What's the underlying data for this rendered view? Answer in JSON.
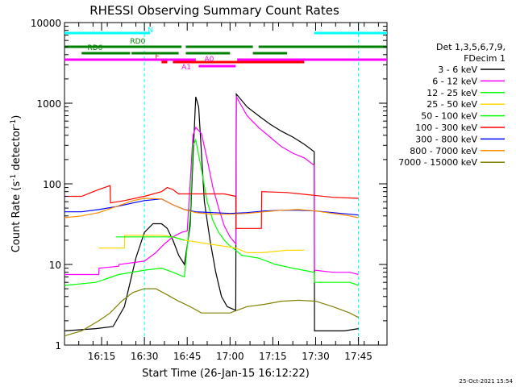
{
  "chart_data": {
    "type": "line",
    "title": "RHESSI Observing Summary Count Rates",
    "xlabel": "Start Time (26-Jan-15 16:12:22)",
    "ylabel_main": "Count Rate (s",
    "ylabel_exp1": "-1",
    "ylabel_mid": " detector",
    "ylabel_exp2": "-1",
    "ylabel_end": ")",
    "footer": "25-Oct-2021 15:54",
    "y_scale": "log",
    "ylim": [
      1,
      10000
    ],
    "y_ticks": [
      {
        "value": 1,
        "label": "1"
      },
      {
        "value": 10,
        "label": "10"
      },
      {
        "value": 100,
        "label": "100"
      },
      {
        "value": 1000,
        "label": "1000"
      },
      {
        "value": 10000,
        "label": "10000"
      }
    ],
    "x_range_min": [
      962,
      1075
    ],
    "x_ticks": [
      {
        "t": 975,
        "label": "16:15"
      },
      {
        "t": 990,
        "label": "16:30"
      },
      {
        "t": 1005,
        "label": "16:45"
      },
      {
        "t": 1020,
        "label": "17:00"
      },
      {
        "t": 1035,
        "label": "17:15"
      },
      {
        "t": 1050,
        "label": "17:30"
      },
      {
        "t": 1065,
        "label": "17:45"
      }
    ],
    "legend": {
      "header1": "Det 1,3,5,6,7,9,",
      "header2": "FDecim 1",
      "placement": "right"
    },
    "series": [
      {
        "name": "3 - 6 keV",
        "color": "#000000",
        "points": [
          [
            962,
            1.5
          ],
          [
            973,
            1.6
          ],
          [
            979,
            1.7
          ],
          [
            983,
            3
          ],
          [
            987,
            12
          ],
          [
            990,
            25
          ],
          [
            993,
            32
          ],
          [
            996,
            32
          ],
          [
            998,
            28
          ],
          [
            1000,
            20
          ],
          [
            1002,
            13
          ],
          [
            1004,
            10
          ],
          [
            1006,
            30
          ],
          [
            1007,
            200
          ],
          [
            1008,
            1200
          ],
          [
            1009,
            900
          ],
          [
            1011,
            60
          ],
          [
            1013,
            20
          ],
          [
            1015,
            8
          ],
          [
            1017,
            4
          ],
          [
            1019,
            3
          ],
          [
            1022,
            2.7
          ],
          [
            1022.2,
            1300
          ],
          [
            1026,
            900
          ],
          [
            1030,
            700
          ],
          [
            1034,
            550
          ],
          [
            1038,
            450
          ],
          [
            1042,
            380
          ],
          [
            1046,
            310
          ],
          [
            1049.5,
            250
          ],
          [
            1049.6,
            1.5
          ],
          [
            1055,
            1.5
          ],
          [
            1060,
            1.5
          ],
          [
            1065,
            1.6
          ]
        ]
      },
      {
        "name": "6 - 12 keV",
        "color": "#ff00ff",
        "points": [
          [
            962,
            7.5
          ],
          [
            974,
            7.5
          ],
          [
            974.1,
            9
          ],
          [
            981,
            9.5
          ],
          [
            981.1,
            10
          ],
          [
            990,
            11
          ],
          [
            994,
            14
          ],
          [
            997,
            18
          ],
          [
            1000,
            22
          ],
          [
            1003,
            25
          ],
          [
            1005,
            26
          ],
          [
            1006,
            100
          ],
          [
            1007,
            400
          ],
          [
            1008,
            500
          ],
          [
            1010,
            420
          ],
          [
            1012,
            200
          ],
          [
            1014,
            90
          ],
          [
            1016,
            50
          ],
          [
            1018,
            30
          ],
          [
            1020,
            22
          ],
          [
            1022,
            18
          ],
          [
            1022.2,
            1200
          ],
          [
            1026,
            700
          ],
          [
            1030,
            500
          ],
          [
            1034,
            380
          ],
          [
            1038,
            290
          ],
          [
            1042,
            240
          ],
          [
            1046,
            210
          ],
          [
            1049.5,
            170
          ],
          [
            1049.6,
            8.5
          ],
          [
            1056,
            8
          ],
          [
            1062,
            8
          ],
          [
            1065,
            7.5
          ]
        ]
      },
      {
        "name": "12 - 25 keV",
        "color": "#00ff00",
        "points": [
          [
            962,
            5.5
          ],
          [
            973,
            6
          ],
          [
            981,
            7.5
          ],
          [
            990,
            8.5
          ],
          [
            996,
            9
          ],
          [
            1000,
            8
          ],
          [
            1004,
            7
          ],
          [
            1006,
            40
          ],
          [
            1007,
            300
          ],
          [
            1008,
            350
          ],
          [
            1010,
            150
          ],
          [
            1012,
            60
          ],
          [
            1014,
            35
          ],
          [
            1016,
            25
          ],
          [
            1018,
            20
          ],
          [
            1020,
            17
          ],
          [
            1022,
            15
          ],
          [
            1024,
            13
          ],
          [
            1030,
            12
          ],
          [
            1036,
            10
          ],
          [
            1042,
            9
          ],
          [
            1049.5,
            8
          ],
          [
            1049.6,
            6
          ],
          [
            1056,
            6
          ],
          [
            1062,
            6
          ],
          [
            1065,
            5.5
          ]
        ]
      },
      {
        "name": "25 - 50 keV",
        "color": "#ffd700",
        "points": [
          [
            974,
            16
          ],
          [
            980,
            16
          ],
          [
            983,
            16
          ],
          [
            983.1,
            23
          ],
          [
            996,
            23
          ],
          [
            1000,
            22
          ],
          [
            1004,
            20
          ],
          [
            1022,
            16
          ],
          [
            1026,
            14
          ],
          [
            1031,
            14
          ],
          [
            1031.1,
            14
          ],
          [
            1040,
            15
          ],
          [
            1046,
            15
          ]
        ]
      },
      {
        "name": "50 - 100 keV",
        "color": "#00ff00",
        "points": [
          [
            980,
            22
          ],
          [
            990,
            22
          ],
          [
            1000,
            22
          ],
          [
            1004,
            20
          ]
        ]
      },
      {
        "name": "100 - 300 keV",
        "color": "#ff0000",
        "points": [
          [
            962,
            70
          ],
          [
            968,
            70
          ],
          [
            974,
            85
          ],
          [
            978,
            95
          ],
          [
            978.1,
            58
          ],
          [
            983,
            62
          ],
          [
            990,
            70
          ],
          [
            996,
            80
          ],
          [
            998,
            90
          ],
          [
            1000,
            85
          ],
          [
            1002,
            75
          ],
          [
            1006,
            75
          ],
          [
            1010,
            75
          ],
          [
            1014,
            75
          ],
          [
            1018,
            75
          ],
          [
            1022,
            70
          ],
          [
            1022.1,
            28
          ],
          [
            1030,
            28
          ],
          [
            1031,
            28
          ],
          [
            1031.1,
            80
          ],
          [
            1040,
            78
          ],
          [
            1049.5,
            72
          ],
          [
            1056,
            68
          ],
          [
            1065,
            66
          ]
        ]
      },
      {
        "name": "300 - 800 keV",
        "color": "#0000ff",
        "points": [
          [
            962,
            45
          ],
          [
            968,
            45
          ],
          [
            974,
            48
          ],
          [
            980,
            52
          ],
          [
            986,
            58
          ],
          [
            990,
            62
          ],
          [
            996,
            65
          ],
          [
            1000,
            55
          ],
          [
            1004,
            48
          ],
          [
            1008,
            45
          ],
          [
            1014,
            44
          ],
          [
            1020,
            43
          ],
          [
            1026,
            44
          ],
          [
            1032,
            46
          ],
          [
            1038,
            47
          ],
          [
            1044,
            47
          ],
          [
            1050,
            46
          ],
          [
            1056,
            44
          ],
          [
            1062,
            42
          ],
          [
            1065,
            41
          ]
        ]
      },
      {
        "name": "800 - 7000 keV",
        "color": "#ff8c00",
        "points": [
          [
            962,
            38
          ],
          [
            968,
            40
          ],
          [
            974,
            44
          ],
          [
            980,
            52
          ],
          [
            986,
            62
          ],
          [
            990,
            66
          ],
          [
            996,
            65
          ],
          [
            1000,
            55
          ],
          [
            1004,
            48
          ],
          [
            1008,
            44
          ],
          [
            1014,
            42
          ],
          [
            1020,
            42
          ],
          [
            1026,
            43
          ],
          [
            1032,
            45
          ],
          [
            1038,
            47
          ],
          [
            1044,
            48
          ],
          [
            1050,
            46
          ],
          [
            1056,
            43
          ],
          [
            1062,
            40
          ],
          [
            1065,
            38
          ]
        ]
      },
      {
        "name": "7000 - 15000 keV",
        "color": "#808000",
        "points": [
          [
            962,
            1.3
          ],
          [
            968,
            1.5
          ],
          [
            974,
            2
          ],
          [
            978,
            2.5
          ],
          [
            982,
            3.5
          ],
          [
            986,
            4.5
          ],
          [
            990,
            5
          ],
          [
            994,
            5
          ],
          [
            998,
            4.2
          ],
          [
            1002,
            3.5
          ],
          [
            1006,
            3
          ],
          [
            1010,
            2.5
          ],
          [
            1014,
            2.5
          ],
          [
            1020,
            2.5
          ],
          [
            1026,
            3
          ],
          [
            1032,
            3.2
          ],
          [
            1038,
            3.5
          ],
          [
            1044,
            3.6
          ],
          [
            1050,
            3.5
          ],
          [
            1056,
            3
          ],
          [
            1062,
            2.5
          ],
          [
            1065,
            2.2
          ]
        ]
      }
    ],
    "flags": [
      {
        "label": "N",
        "color": "#00ffff",
        "segments": [
          [
            962,
            992
          ],
          [
            1049.5,
            1075
          ]
        ]
      },
      {
        "label": "F",
        "color": "#ff0000",
        "segments": [
          [
            996,
            998
          ],
          [
            1000,
            1046
          ]
        ]
      },
      {
        "label": "RD0",
        "color": "#008000",
        "segments": [
          [
            962,
            1003
          ],
          [
            1004.5,
            1028
          ],
          [
            1030,
            1075
          ]
        ]
      },
      {
        "label": "RD6",
        "color": "#008000",
        "segments": [
          [
            968,
            985
          ],
          [
            985.5,
            1002
          ],
          [
            1004.5,
            1020
          ],
          [
            1028,
            1040
          ]
        ]
      },
      {
        "label": "A0",
        "color": "#ff00ff",
        "segments": [
          [
            1009,
            1022
          ]
        ]
      },
      {
        "label": "A1",
        "color": "#ff00ff",
        "segments": [
          [
            962,
            1008
          ],
          [
            1022.5,
            1075
          ]
        ]
      }
    ],
    "vlines": [
      {
        "t": 990,
        "color": "#00ffff"
      },
      {
        "t": 1065,
        "color": "#00ffff"
      }
    ],
    "grid": false
  }
}
